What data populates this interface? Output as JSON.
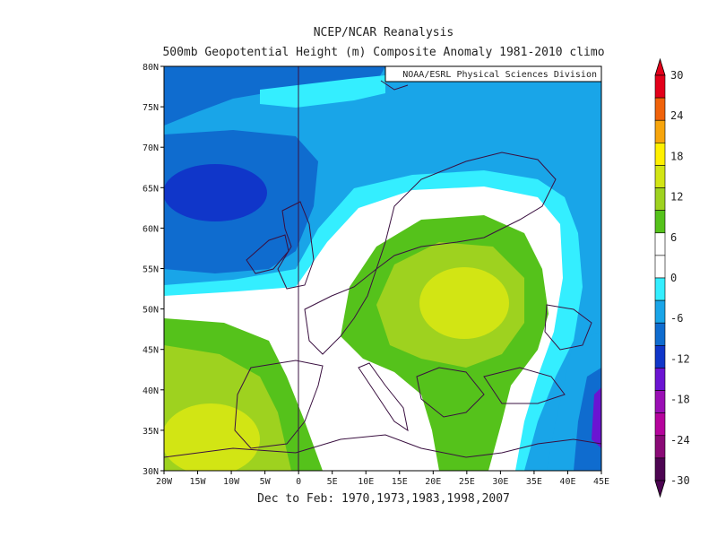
{
  "header": {
    "title": "NCEP/NCAR Reanalysis",
    "subtitle": "500mb Geopotential Height (m) Composite Anomaly 1981-2010 climo",
    "credit": "NOAA/ESRL Physical Sciences Division"
  },
  "footer": {
    "caption": "Dec to Feb: 1970,1973,1983,1998,2007"
  },
  "map": {
    "lat_labels": [
      "30N",
      "35N",
      "40N",
      "45N",
      "50N",
      "55N",
      "60N",
      "65N",
      "70N",
      "75N",
      "80N"
    ],
    "lon_labels": [
      "20W",
      "15W",
      "10W",
      "5W",
      "0",
      "5E",
      "10E",
      "15E",
      "20E",
      "25E",
      "30E",
      "35E",
      "40E",
      "45E"
    ],
    "lat_range": [
      30,
      80
    ],
    "lon_range": [
      -20,
      45
    ]
  },
  "colorbar": {
    "labels": [
      "30",
      "24",
      "18",
      "12",
      "6",
      "0",
      "-6",
      "-12",
      "-18",
      "-24",
      "-30"
    ],
    "colors": [
      "#e3001a",
      "#f0620a",
      "#f7a50c",
      "#fff000",
      "#d2e514",
      "#9ed21f",
      "#55c21b",
      "#ffffff",
      "#ffffff",
      "#34eeff",
      "#19a5e8",
      "#0f6ccf",
      "#1036c9",
      "#6b14d2",
      "#9a0fb5",
      "#b5049c",
      "#8a0a76",
      "#4d0552"
    ]
  }
}
